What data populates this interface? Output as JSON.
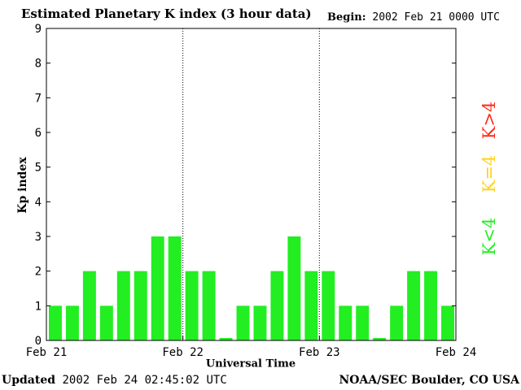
{
  "header": {
    "title": "Estimated Planetary K index (3 hour data)",
    "begin_label": "Begin:",
    "begin_value": "2002 Feb 21 0000 UTC"
  },
  "footer": {
    "updated_label": "Updated",
    "updated_value": "2002 Feb 24 02:45:02 UTC",
    "credit": "NOAA/SEC Boulder, CO USA"
  },
  "legend": [
    {
      "label": "K>4",
      "color": "#ff2a1a"
    },
    {
      "label": "K=4",
      "color": "#ffd21a"
    },
    {
      "label": "K<4",
      "color": "#22ee22"
    }
  ],
  "chart_data": {
    "type": "bar",
    "title": "Estimated Planetary K index (3 hour data)",
    "xlabel": "Universal Time",
    "ylabel": "Kp index",
    "ylim": [
      0,
      9
    ],
    "yticks": [
      0,
      1,
      2,
      3,
      4,
      5,
      6,
      7,
      8,
      9
    ],
    "xticks": [
      "Feb 21",
      "Feb 22",
      "Feb 23",
      "Feb 24"
    ],
    "values": [
      1,
      1,
      2,
      1,
      2,
      2,
      3,
      3,
      2,
      2,
      0.07,
      1,
      1,
      2,
      3,
      2,
      2,
      1,
      1,
      0.07,
      1,
      2,
      2,
      1
    ],
    "bar_color": "#22ee22",
    "day_separators": [
      "Feb 22",
      "Feb 23"
    ]
  }
}
